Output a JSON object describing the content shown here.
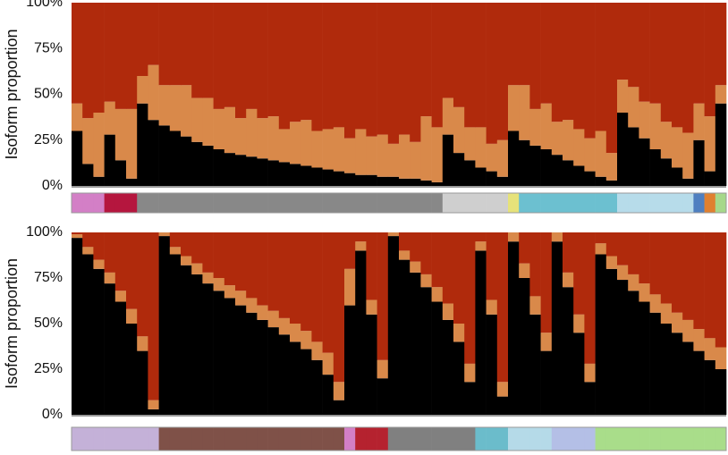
{
  "chart_data": [
    {
      "type": "stacked_bar",
      "ylabel": "Isoform proportion",
      "ylim": [
        0,
        100
      ],
      "yticks": [
        {
          "value": 0,
          "label": "0%"
        },
        {
          "value": 25,
          "label": "25%"
        },
        {
          "value": 50,
          "label": "50%"
        },
        {
          "value": 75,
          "label": "75%"
        },
        {
          "value": 100,
          "label": "100%"
        }
      ],
      "series": [
        {
          "color": "#000000",
          "values": [
            30,
            12,
            5,
            28,
            14,
            4,
            45,
            36,
            33,
            30,
            27,
            24,
            22,
            20,
            18,
            17,
            16,
            15,
            14,
            13,
            12,
            11,
            10,
            9,
            8,
            7,
            6,
            6,
            5,
            5,
            4,
            4,
            3,
            2,
            28,
            18,
            14,
            10,
            8,
            5,
            30,
            25,
            22,
            20,
            17,
            14,
            11,
            8,
            5,
            3,
            40,
            32,
            26,
            20,
            15,
            10,
            4,
            25,
            8,
            45
          ]
        },
        {
          "color": "#d9894a",
          "values": [
            15,
            25,
            35,
            18,
            28,
            38,
            15,
            30,
            22,
            25,
            28,
            24,
            26,
            22,
            25,
            20,
            26,
            22,
            24,
            18,
            23,
            25,
            20,
            22,
            24,
            19,
            25,
            21,
            23,
            18,
            24,
            20,
            35,
            30,
            20,
            25,
            18,
            22,
            15,
            20,
            25,
            30,
            20,
            25,
            18,
            22,
            20,
            18,
            25,
            15,
            18,
            22,
            20,
            25,
            20,
            22,
            25,
            20,
            30,
            10
          ]
        },
        {
          "color": "#b02a0c",
          "values": [
            55,
            63,
            60,
            54,
            58,
            58,
            40,
            34,
            45,
            45,
            45,
            52,
            52,
            58,
            57,
            63,
            58,
            63,
            62,
            69,
            65,
            64,
            70,
            69,
            68,
            74,
            69,
            73,
            72,
            77,
            72,
            76,
            62,
            68,
            52,
            57,
            68,
            68,
            77,
            75,
            45,
            45,
            58,
            55,
            65,
            64,
            69,
            74,
            70,
            82,
            42,
            46,
            54,
            55,
            65,
            68,
            71,
            55,
            62,
            45
          ]
        }
      ],
      "group_colors": [
        "#d37fc6",
        "#d37fc6",
        "#d37fc6",
        "#b5163e",
        "#b5163e",
        "#b5163e",
        "#888888",
        "#888888",
        "#888888",
        "#888888",
        "#888888",
        "#888888",
        "#888888",
        "#888888",
        "#888888",
        "#888888",
        "#888888",
        "#888888",
        "#888888",
        "#888888",
        "#888888",
        "#888888",
        "#888888",
        "#888888",
        "#888888",
        "#888888",
        "#888888",
        "#888888",
        "#888888",
        "#888888",
        "#888888",
        "#888888",
        "#888888",
        "#888888",
        "#cfcfcf",
        "#cfcfcf",
        "#cfcfcf",
        "#cfcfcf",
        "#cfcfcf",
        "#cfcfcf",
        "#e6e27a",
        "#6cc0d0",
        "#6cc0d0",
        "#6cc0d0",
        "#6cc0d0",
        "#6cc0d0",
        "#6cc0d0",
        "#6cc0d0",
        "#6cc0d0",
        "#6cc0d0",
        "#b7dcea",
        "#b7dcea",
        "#b7dcea",
        "#b7dcea",
        "#b7dcea",
        "#b7dcea",
        "#b7dcea",
        "#4f7fc0",
        "#e08030",
        "#a6d88a"
      ]
    },
    {
      "type": "stacked_bar",
      "ylabel": "Isoform proportion",
      "ylim": [
        0,
        100
      ],
      "yticks": [
        {
          "value": 0,
          "label": "0%"
        },
        {
          "value": 25,
          "label": "25%"
        },
        {
          "value": 50,
          "label": "50%"
        },
        {
          "value": 75,
          "label": "75%"
        },
        {
          "value": 100,
          "label": "100%"
        }
      ],
      "series": [
        {
          "color": "#000000",
          "values": [
            97,
            88,
            80,
            72,
            62,
            50,
            35,
            3,
            98,
            88,
            82,
            77,
            72,
            68,
            64,
            60,
            56,
            52,
            48,
            44,
            40,
            36,
            30,
            22,
            8,
            60,
            90,
            55,
            20,
            98,
            85,
            78,
            70,
            62,
            52,
            40,
            18,
            90,
            55,
            10,
            95,
            75,
            55,
            35,
            95,
            70,
            45,
            18,
            88,
            80,
            74,
            68,
            62,
            56,
            50,
            45,
            40,
            35,
            30,
            25
          ]
        },
        {
          "color": "#d9894a",
          "values": [
            2,
            4,
            5,
            6,
            6,
            8,
            8,
            5,
            2,
            4,
            5,
            6,
            6,
            7,
            7,
            8,
            8,
            8,
            9,
            9,
            10,
            10,
            10,
            12,
            10,
            20,
            5,
            8,
            10,
            2,
            5,
            6,
            7,
            8,
            9,
            10,
            10,
            5,
            8,
            8,
            5,
            8,
            10,
            10,
            5,
            8,
            10,
            10,
            6,
            7,
            8,
            9,
            10,
            10,
            11,
            11,
            12,
            12,
            12,
            12
          ]
        },
        {
          "color": "#b02a0c",
          "values": [
            1,
            8,
            15,
            22,
            32,
            42,
            57,
            92,
            0,
            8,
            13,
            17,
            22,
            25,
            29,
            32,
            36,
            40,
            43,
            47,
            50,
            54,
            60,
            66,
            82,
            20,
            5,
            37,
            70,
            0,
            10,
            16,
            23,
            30,
            39,
            50,
            72,
            5,
            37,
            82,
            0,
            17,
            35,
            55,
            0,
            22,
            45,
            72,
            6,
            13,
            18,
            23,
            28,
            34,
            39,
            44,
            48,
            53,
            58,
            63
          ]
        }
      ],
      "group_colors": [
        "#c4b1d8",
        "#c4b1d8",
        "#c4b1d8",
        "#c4b1d8",
        "#c4b1d8",
        "#c4b1d8",
        "#c4b1d8",
        "#c4b1d8",
        "#7f5148",
        "#7f5148",
        "#7f5148",
        "#7f5148",
        "#7f5148",
        "#7f5148",
        "#7f5148",
        "#7f5148",
        "#7f5148",
        "#7f5148",
        "#7f5148",
        "#7f5148",
        "#7f5148",
        "#7f5148",
        "#7f5148",
        "#7f5148",
        "#7f5148",
        "#d37fc6",
        "#b5222f",
        "#b5222f",
        "#b5222f",
        "#808080",
        "#808080",
        "#808080",
        "#808080",
        "#808080",
        "#808080",
        "#808080",
        "#808080",
        "#6bbccb",
        "#6bbccb",
        "#6bbccb",
        "#b5dae8",
        "#b5dae8",
        "#b5dae8",
        "#b5dae8",
        "#b4bfe6",
        "#b4bfe6",
        "#b4bfe6",
        "#b4bfe6",
        "#a9dd8a",
        "#a9dd8a",
        "#a9dd8a",
        "#a9dd8a",
        "#a9dd8a",
        "#a9dd8a",
        "#a9dd8a",
        "#a9dd8a",
        "#a9dd8a",
        "#a9dd8a",
        "#a9dd8a",
        "#a9dd8a"
      ]
    }
  ]
}
